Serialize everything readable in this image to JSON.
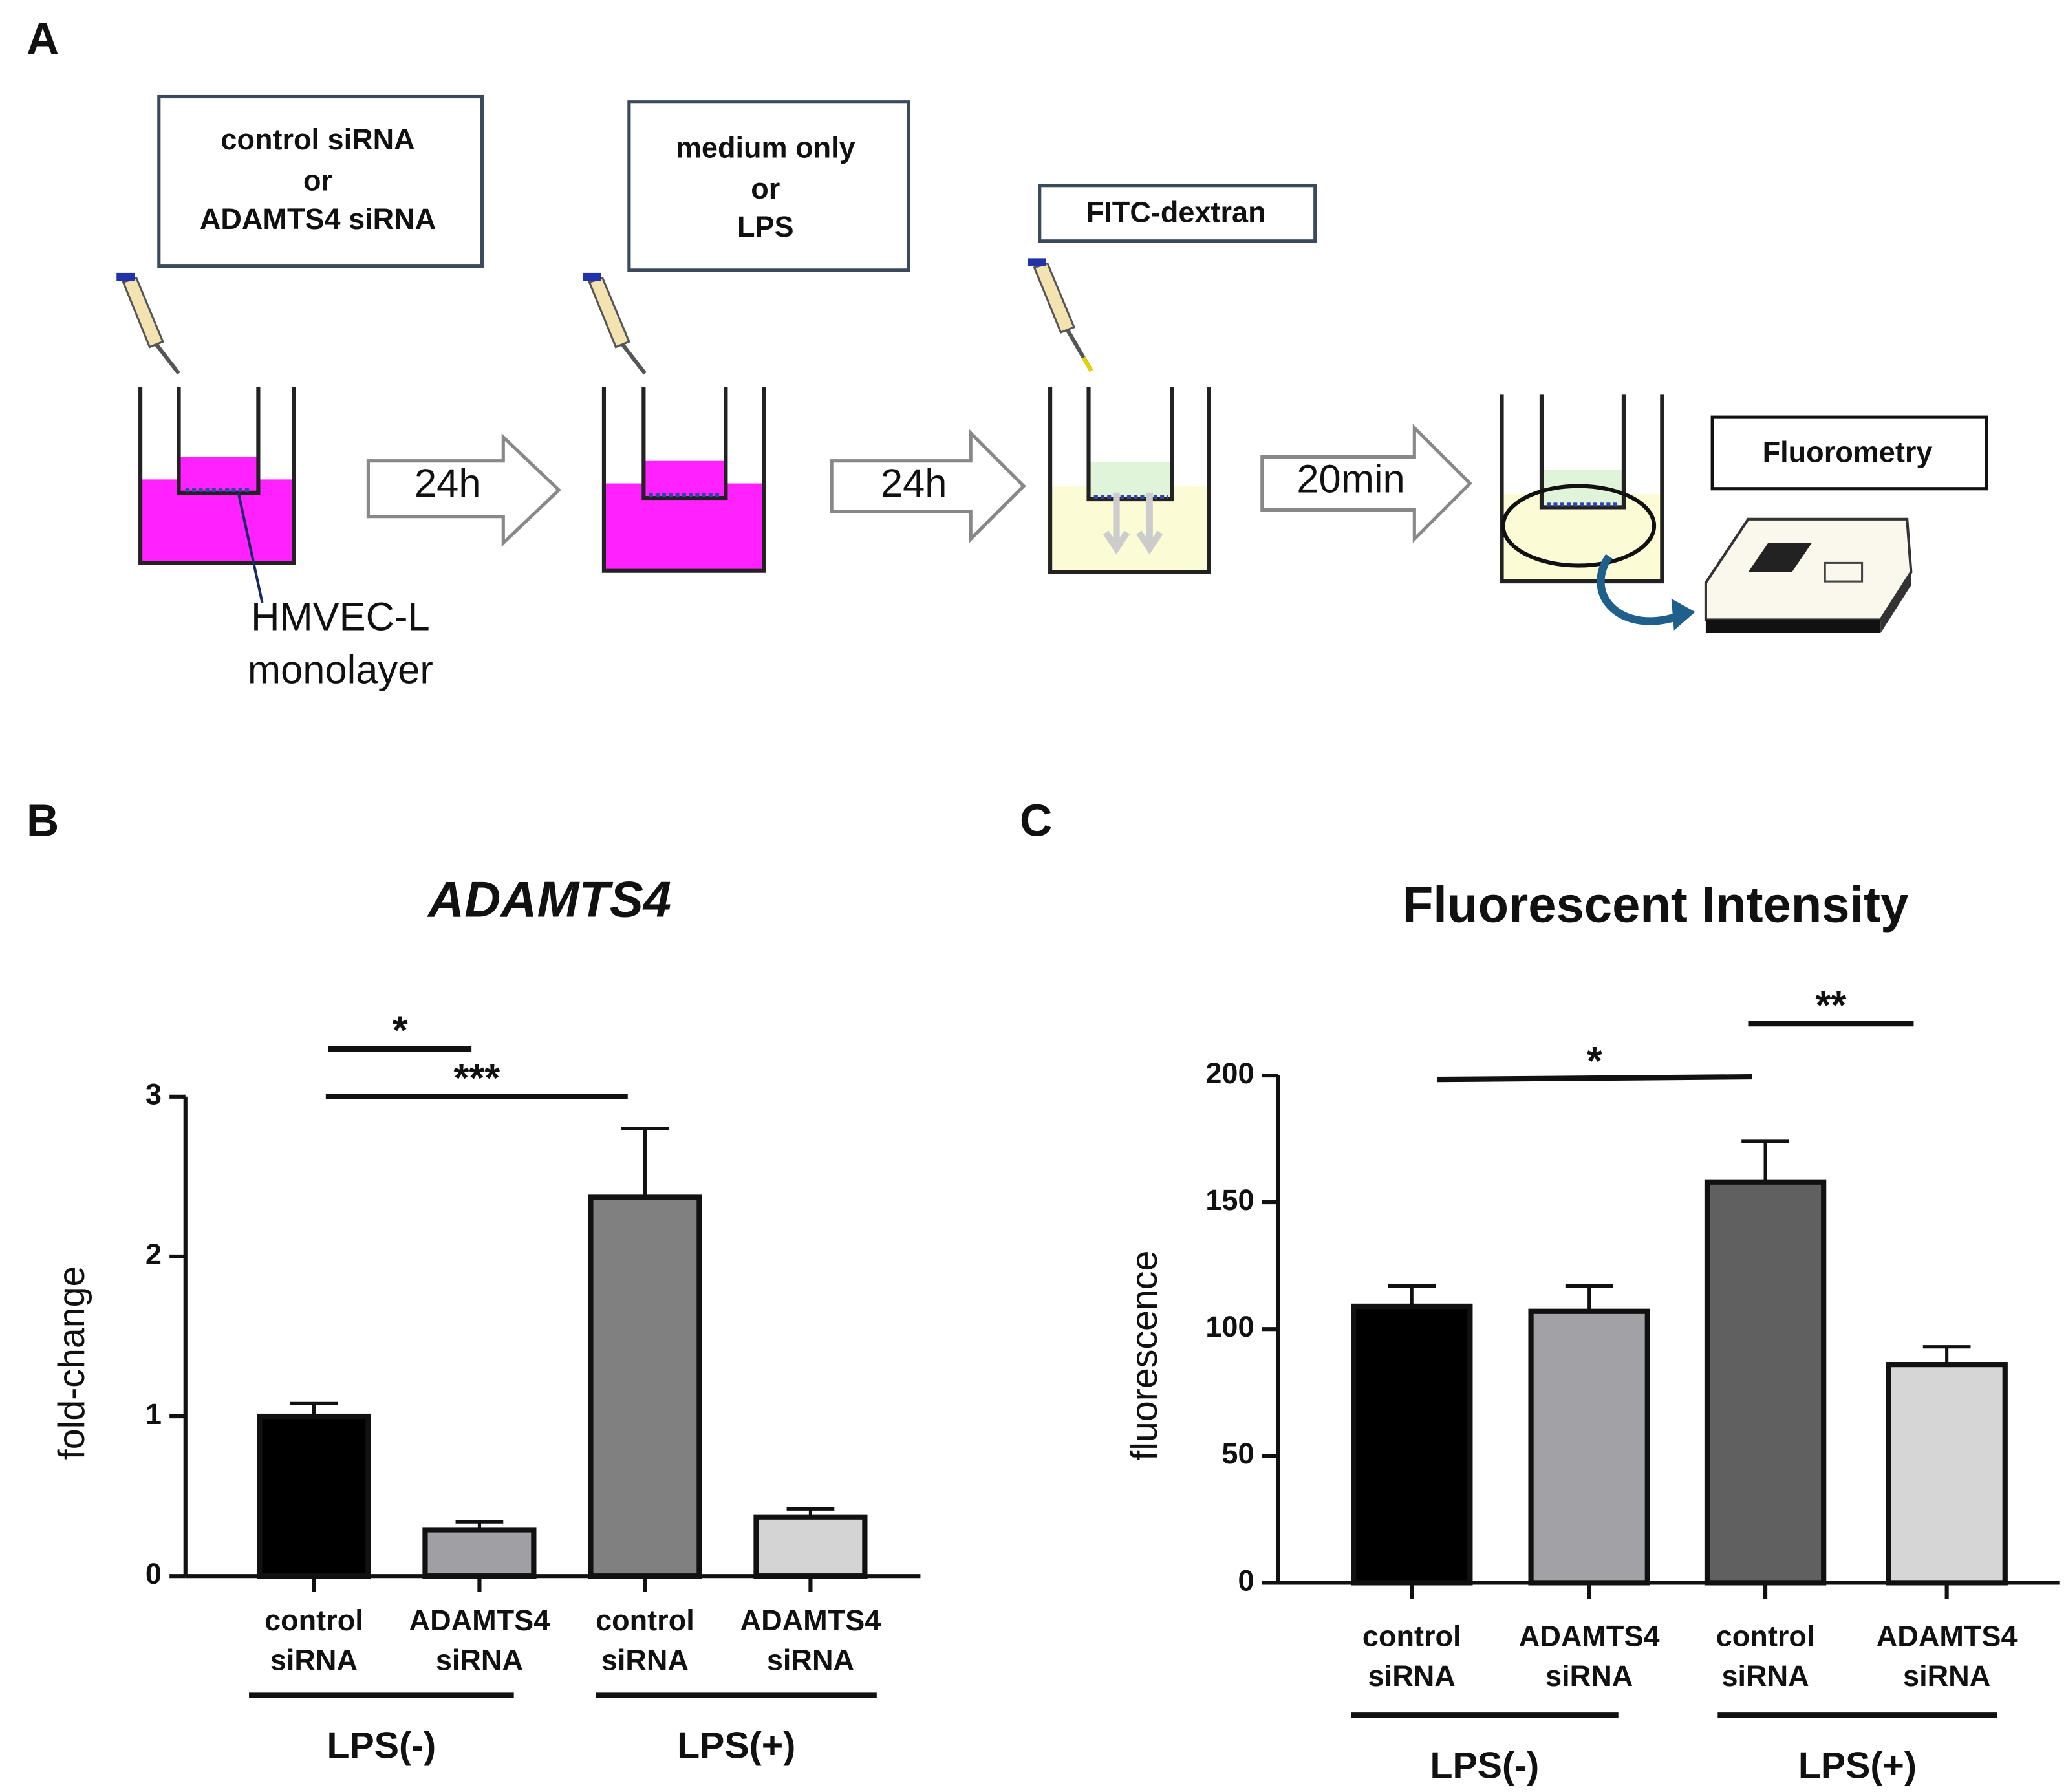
{
  "panels": [
    "A",
    "B",
    "C"
  ],
  "diagram": {
    "boxes": [
      [
        "control siRNA",
        "or",
        "ADAMTS4 siRNA"
      ],
      [
        "medium only",
        "or",
        "LPS"
      ],
      [
        "FITC-dextran"
      ]
    ],
    "steps": [
      "24h",
      "24h",
      "20min"
    ],
    "cell_label": [
      "HMVEC-L",
      "monolayer"
    ],
    "instrument": "Fluorometry"
  },
  "chart_data": [
    {
      "type": "bar",
      "title": "ADAMTS4",
      "ylabel": "fold-change",
      "categories": [
        "control siRNA",
        "ADAMTS4 siRNA",
        "control siRNA",
        "ADAMTS4 siRNA"
      ],
      "values": [
        1.0,
        0.29,
        2.37,
        0.37
      ],
      "errors": [
        0.08,
        0.05,
        0.43,
        0.05
      ],
      "colors": [
        "#000000",
        "#a0a0a4",
        "#808080",
        "#d4d4d4"
      ],
      "groups": [
        "LPS(-)",
        "LPS(+)"
      ],
      "annotations": [
        "*",
        "***"
      ],
      "ylim": [
        0,
        3
      ],
      "yticks": [
        0,
        1,
        2,
        3
      ]
    },
    {
      "type": "bar",
      "title": "Fluorescent Intensity",
      "ylabel": "fluorescence",
      "categories": [
        "control siRNA",
        "ADAMTS4 siRNA",
        "control siRNA",
        "ADAMTS4 siRNA"
      ],
      "values": [
        109,
        107,
        158,
        86
      ],
      "errors": [
        8,
        10,
        16,
        7
      ],
      "colors": [
        "#000000",
        "#a2a1a6",
        "#606060",
        "#d6d6d6"
      ],
      "groups": [
        "LPS(-)",
        "LPS(+)"
      ],
      "annotations": [
        "*",
        "**"
      ],
      "ylim": [
        0,
        200
      ],
      "yticks": [
        0,
        50,
        100,
        150,
        200
      ]
    }
  ]
}
